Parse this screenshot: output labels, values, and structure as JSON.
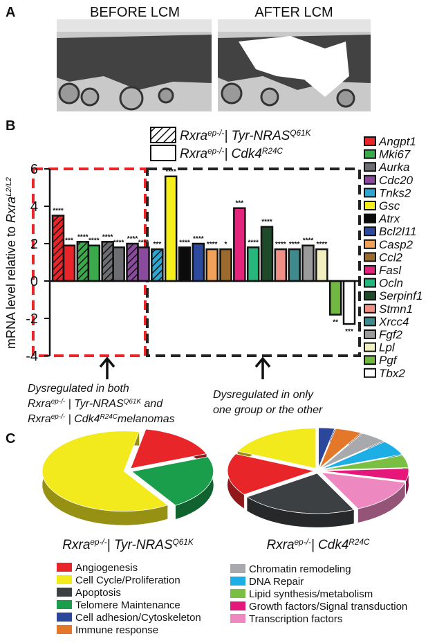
{
  "panel_labels": [
    "A",
    "B",
    "C"
  ],
  "panel_a": {
    "before": "BEFORE LCM",
    "after": "AFTER LCM"
  },
  "chart_data": [
    {
      "type": "bar",
      "ylabel": [
        {
          "text": "mRNA level relative to "
        },
        {
          "text": "Rxra",
          "italic": true
        },
        {
          "text": "L2/L2",
          "italic": true,
          "sup": true
        }
      ],
      "categories": [
        "Angpt1",
        "Mki67",
        "Aurka",
        "Cdc20",
        "Tnks2",
        "Gsc",
        "Atrx",
        "Bcl2l11",
        "Casp2",
        "Ccl2",
        "Fasl",
        "Ocln",
        "Serpinf1",
        "Stmn1",
        "Xrcc4",
        "Fgf2",
        "Lpl",
        "Pgf",
        "Tbx2"
      ],
      "colors": [
        "#e8262a",
        "#3aaa4a",
        "#6d6e71",
        "#8a4b9e",
        "#2ea6cf",
        "#f4ee1c",
        "#0b0b0b",
        "#2e4a9e",
        "#f0a25a",
        "#9a6a2f",
        "#e2267d",
        "#27b67c",
        "#1f4a2a",
        "#ef8f86",
        "#3f8a8c",
        "#9b9b9b",
        "#f1efc0",
        "#71b843",
        "#ffffff"
      ],
      "series": [
        {
          "name": [
            {
              "text": "Rxra"
            },
            {
              "text": "ep-/-",
              "sup": true
            },
            {
              "text": "| Tyr-NRAS"
            },
            {
              "text": "Q61K",
              "sup": true
            }
          ],
          "pattern": "hatch",
          "values": [
            3.5,
            2.1,
            2.1,
            2.0,
            1.7,
            null,
            null,
            null,
            null,
            null,
            null,
            null,
            null,
            null,
            null,
            null,
            null,
            null,
            null
          ],
          "significance": [
            "****",
            "****",
            "****",
            "****",
            "***",
            null,
            null,
            null,
            null,
            null,
            null,
            null,
            null,
            null,
            null,
            null,
            null,
            null,
            null
          ]
        },
        {
          "name": [
            {
              "text": "Rxra"
            },
            {
              "text": "ep-/-",
              "sup": true
            },
            {
              "text": "| Cdk4"
            },
            {
              "text": "R24C",
              "sup": true
            }
          ],
          "pattern": "solid",
          "values": [
            1.9,
            1.9,
            1.8,
            1.8,
            null,
            5.6,
            1.8,
            2.0,
            1.7,
            1.7,
            3.9,
            1.8,
            2.9,
            1.7,
            1.7,
            1.9,
            1.7,
            -1.8,
            -2.3
          ],
          "significance": [
            "***",
            "****",
            "****",
            "****",
            null,
            "****",
            "****",
            "****",
            "****",
            "*",
            "***",
            "****",
            "****",
            "****",
            "****",
            "****",
            "****",
            "**",
            "***"
          ]
        }
      ],
      "ylim": [
        -4,
        6
      ],
      "yticks": [
        -4,
        -2,
        0,
        2,
        4,
        6
      ],
      "annotations": [
        [
          [
            {
              "text": "Dysregulated in both"
            }
          ],
          [
            {
              "text": "Rxra"
            },
            {
              "text": "ep-/-",
              "sup": true
            },
            {
              "text": " | Tyr-NRAS"
            },
            {
              "text": "Q61K",
              "sup": true
            },
            {
              "text": " and"
            }
          ],
          [
            {
              "text": "Rxra"
            },
            {
              "text": "ep-/-",
              "sup": true
            },
            {
              "text": " | Cdk4"
            },
            {
              "text": "R24C",
              "sup": true
            },
            {
              "text": "melanomas"
            }
          ]
        ],
        [
          [
            {
              "text": "Dysregulated in only"
            }
          ],
          [
            {
              "text": "one group or the other"
            }
          ]
        ]
      ]
    },
    {
      "type": "pie",
      "title": [
        {
          "text": "Rxra"
        },
        {
          "text": "ep-/-",
          "sup": true
        },
        {
          "text": "| Tyr-NRAS"
        },
        {
          "text": "Q61K",
          "sup": true
        }
      ],
      "categories": [
        "Angiogenesis",
        "Cell Cycle/Proliferation",
        "Apoptosis",
        "Telomere Maintenance",
        "Cell adhesion/Cytoskeleton",
        "Immune response",
        "Chromatin remodeling",
        "DNA Repair",
        "Lipid synthesis/metabolism",
        "Growth factors/Signal transduction",
        "Transcription factors"
      ],
      "colors": [
        "#e8262a",
        "#f2ea1d",
        "#3d4042",
        "#1a9e4b",
        "#2b479b",
        "#e3772a",
        "#a7a9ac",
        "#1eaee6",
        "#79bf43",
        "#e5177b",
        "#ee88c0"
      ],
      "values": [
        16,
        62,
        null,
        22,
        null,
        null,
        null,
        null,
        null,
        null,
        null
      ]
    },
    {
      "type": "pie",
      "title": [
        {
          "text": "Rxra"
        },
        {
          "text": "ep-/-",
          "sup": true
        },
        {
          "text": "| Cdk4"
        },
        {
          "text": "R24C",
          "sup": true
        }
      ],
      "values": [
        17,
        18,
        22,
        null,
        3,
        5,
        5,
        6,
        5,
        5,
        14
      ]
    }
  ]
}
